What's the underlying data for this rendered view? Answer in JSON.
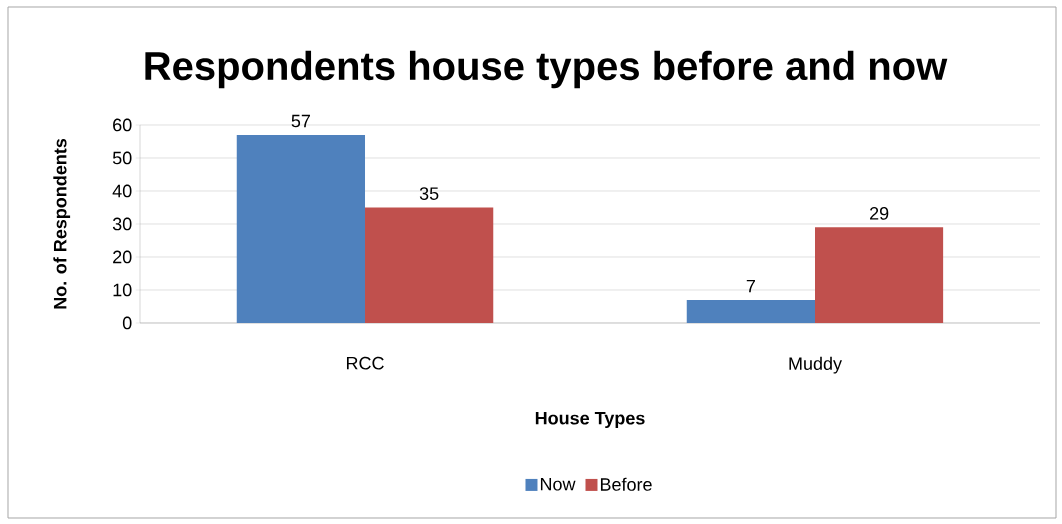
{
  "chart_data": {
    "type": "bar",
    "title": "Respondents house types before and now",
    "xlabel": "House Types",
    "ylabel": "No. of Respondents",
    "categories": [
      "RCC",
      "Muddy"
    ],
    "series": [
      {
        "name": "Now",
        "color": "#4f81bd",
        "values": [
          57,
          7
        ]
      },
      {
        "name": "Before",
        "color": "#c0504d",
        "values": [
          35,
          29
        ]
      }
    ],
    "ylim": [
      0,
      60
    ],
    "yticks": [
      0,
      10,
      20,
      30,
      40,
      50,
      60
    ],
    "grid": "y",
    "legend": "bottom",
    "data_labels": true
  }
}
